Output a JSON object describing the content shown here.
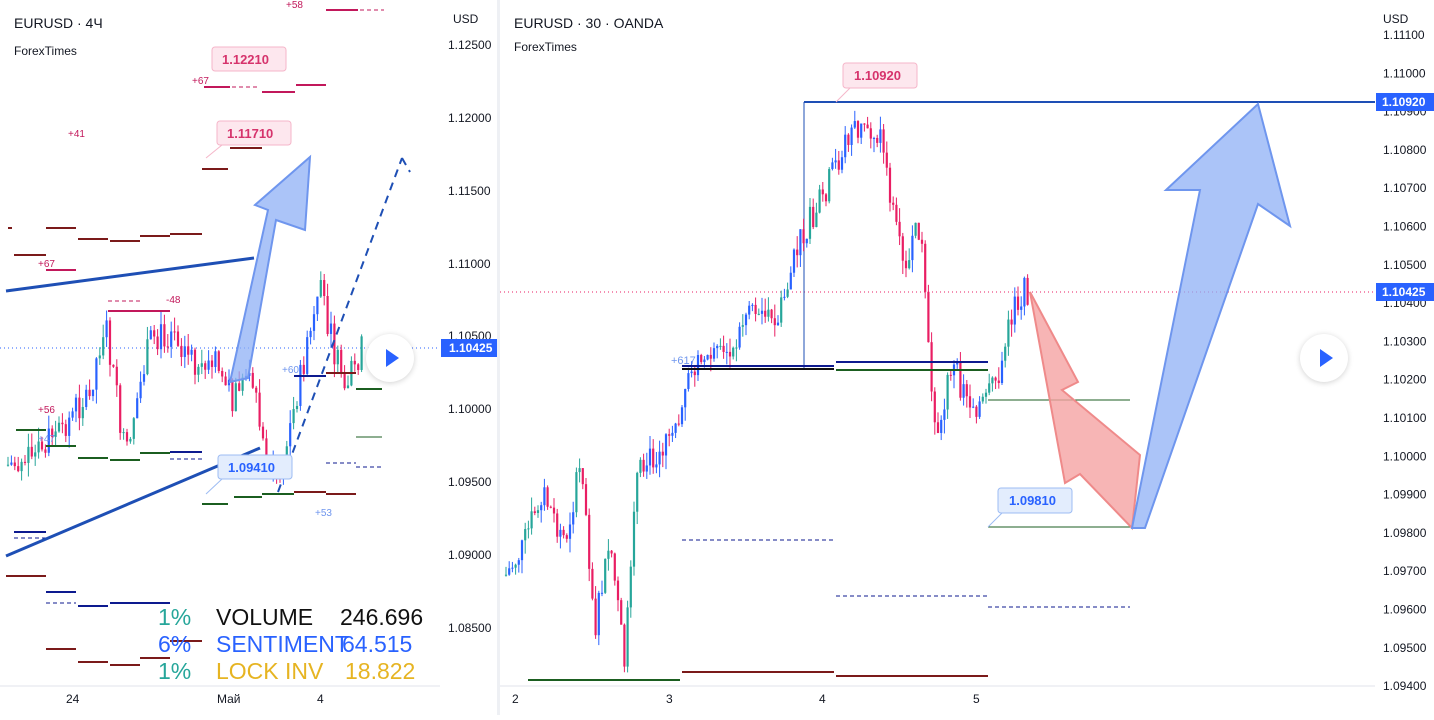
{
  "left_chart": {
    "symbol": "EURUSD · 4Ч",
    "author": "ForexTimes",
    "currency": "USD",
    "price_ticks": [
      "1.12500",
      "1.12000",
      "1.11500",
      "1.11000",
      "1.10500",
      "1.10000",
      "1.09500",
      "1.09000",
      "1.08500"
    ],
    "time_ticks": [
      "24",
      "Май",
      "4"
    ],
    "current_price": "1.10425",
    "labels": {
      "l1": "1.12210",
      "l2": "1.11710",
      "l3": "1.09410"
    },
    "marks": {
      "m_p58": "+58",
      "m_p67a": "+67",
      "m_p41": "+41",
      "m_p67b": "+67",
      "m_m48": "-48",
      "m_p56": "+56",
      "m_p47": "+47",
      "m_p60": "+60",
      "m_p53": "+53"
    },
    "stats": {
      "pct1": "1%",
      "label1": "VOLUME",
      "value1": "246.696",
      "pct2": "6%",
      "label2": "SENTIMENT",
      "value2": "64.515",
      "pct3": "1%",
      "label3": "LOCK INV",
      "value3": "18.822"
    }
  },
  "right_chart": {
    "symbol": "EURUSD · 30 · OANDA",
    "author": "ForexTimes",
    "currency": "USD",
    "price_ticks": [
      "1.11100",
      "1.11000",
      "1.10900",
      "1.10800",
      "1.10700",
      "1.10600",
      "1.10500",
      "1.10400",
      "1.10300",
      "1.10200",
      "1.10100",
      "1.10000",
      "1.09900",
      "1.09800",
      "1.09700",
      "1.09600",
      "1.09500",
      "1.09400"
    ],
    "time_ticks": [
      "2",
      "3",
      "4",
      "5"
    ],
    "current_price": "1.10425",
    "high_price": "1.10920",
    "labels": {
      "top": "1.10920",
      "bottom": "1.09810"
    },
    "marks": {
      "m_p617": "+617"
    }
  },
  "colors": {
    "up": "#26a69a",
    "up_blue": "#2962ff",
    "down": "#e91e63",
    "line_blue": "#1e4fb5",
    "arrow_blue": "#8fb0f5",
    "arrow_red": "#f5a3a3",
    "price_badge": "#2962ff"
  },
  "icons": [
    "play-icon"
  ]
}
